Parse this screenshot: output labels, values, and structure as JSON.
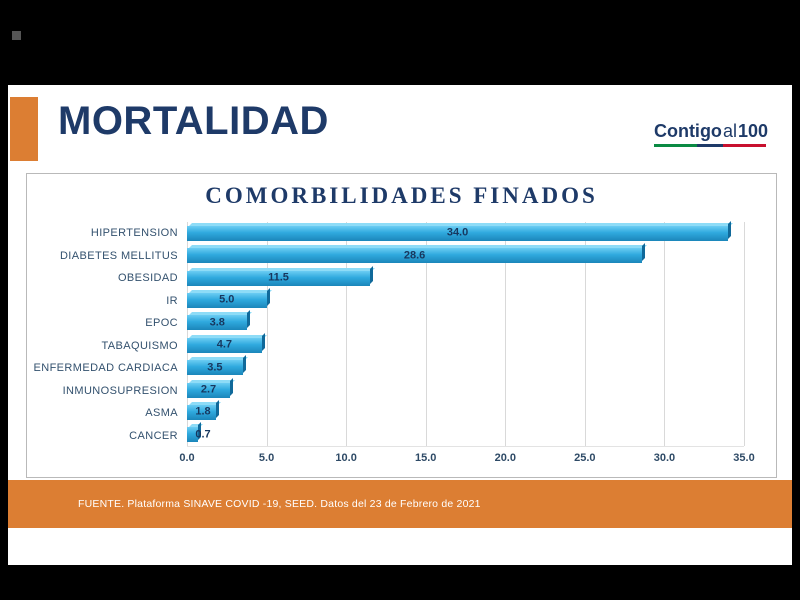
{
  "header": {
    "title": "MORTALIDAD",
    "logo": {
      "contigo": "Contigo",
      "al": "al",
      "hundred": "100"
    }
  },
  "chart_data": {
    "type": "bar",
    "orientation": "horizontal",
    "title": "COMORBILIDADES FINADOS",
    "categories": [
      "HIPERTENSION",
      "DIABETES MELLITUS",
      "OBESIDAD",
      "IR",
      "EPOC",
      "TABAQUISMO",
      "ENFERMEDAD CARDIACA",
      "INMUNOSUPRESION",
      "ASMA",
      "CANCER"
    ],
    "values": [
      34.0,
      28.6,
      11.5,
      5.0,
      3.8,
      4.7,
      3.5,
      2.7,
      1.8,
      0.7
    ],
    "value_labels": [
      "34.0",
      "28.6",
      "11.5",
      "5.0",
      "3.8",
      "4.7",
      "3.5",
      "2.7",
      "1.8",
      "0.7"
    ],
    "xlim": [
      0,
      35
    ],
    "x_ticks": [
      0,
      5,
      10,
      15,
      20,
      25,
      30,
      35
    ],
    "x_tick_labels": [
      "0.0",
      "5.0",
      "10.0",
      "15.0",
      "20.0",
      "25.0",
      "30.0",
      "35.0"
    ],
    "grid": true,
    "legend": false,
    "xlabel": "",
    "ylabel": ""
  },
  "footer": {
    "source": "FUENTE. Plataforma SINAVE COVID -19, SEED. Datos del 23 de Febrero de 2021"
  },
  "colors": {
    "accent_orange": "#DC7E33",
    "navy": "#1E3A68",
    "bar_blue": "#2FA9DE",
    "value_label": "#17375E",
    "gridline": "#D9D9D9",
    "logo_green": "#0A8A43",
    "logo_red": "#C8102E",
    "background": "#000000"
  }
}
